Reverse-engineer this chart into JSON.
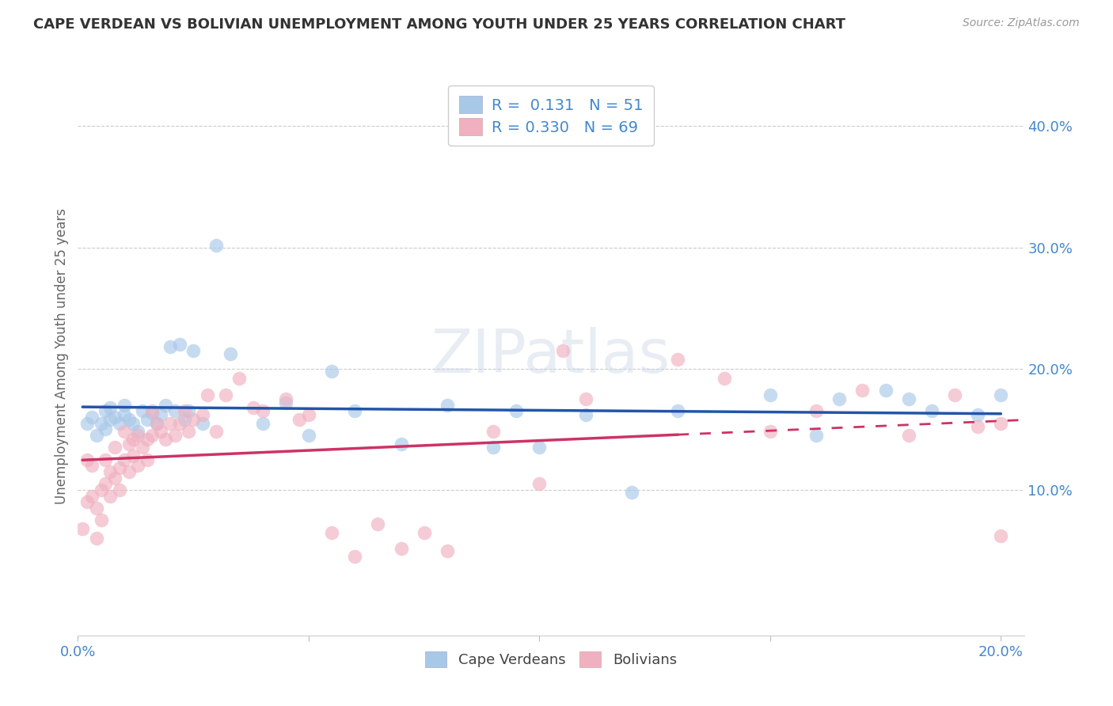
{
  "title": "CAPE VERDEAN VS BOLIVIAN UNEMPLOYMENT AMONG YOUTH UNDER 25 YEARS CORRELATION CHART",
  "source": "Source: ZipAtlas.com",
  "ylabel": "Unemployment Among Youth under 25 years",
  "xlim": [
    0.0,
    0.205
  ],
  "ylim": [
    -0.02,
    0.44
  ],
  "xtick_pos": [
    0.0,
    0.05,
    0.1,
    0.15,
    0.2
  ],
  "xtick_labels": [
    "0.0%",
    "",
    "",
    "",
    "20.0%"
  ],
  "ytick_vals": [
    0.1,
    0.2,
    0.3,
    0.4
  ],
  "ytick_labels": [
    "10.0%",
    "20.0%",
    "30.0%",
    "40.0%"
  ],
  "legend_labels": [
    "Cape Verdeans",
    "Bolivians"
  ],
  "cape_verdean_color": "#a8c8e8",
  "bolivian_color": "#f0b0c0",
  "cape_verdean_line_color": "#2255aa",
  "bolivian_line_color": "#cc3366",
  "watermark": "ZIPatlas",
  "background_color": "#ffffff",
  "cv_scatter_x": [
    0.002,
    0.003,
    0.004,
    0.005,
    0.006,
    0.006,
    0.007,
    0.007,
    0.008,
    0.009,
    0.01,
    0.01,
    0.011,
    0.012,
    0.013,
    0.014,
    0.015,
    0.016,
    0.017,
    0.018,
    0.019,
    0.02,
    0.021,
    0.022,
    0.023,
    0.024,
    0.025,
    0.027,
    0.03,
    0.033,
    0.04,
    0.045,
    0.05,
    0.055,
    0.06,
    0.07,
    0.08,
    0.09,
    0.095,
    0.1,
    0.11,
    0.12,
    0.13,
    0.15,
    0.16,
    0.165,
    0.175,
    0.18,
    0.185,
    0.195,
    0.2
  ],
  "cv_scatter_y": [
    0.155,
    0.16,
    0.145,
    0.155,
    0.15,
    0.165,
    0.158,
    0.168,
    0.16,
    0.155,
    0.162,
    0.17,
    0.158,
    0.155,
    0.148,
    0.165,
    0.158,
    0.163,
    0.155,
    0.162,
    0.17,
    0.218,
    0.165,
    0.22,
    0.158,
    0.165,
    0.215,
    0.155,
    0.302,
    0.212,
    0.155,
    0.172,
    0.145,
    0.198,
    0.165,
    0.138,
    0.17,
    0.135,
    0.165,
    0.135,
    0.162,
    0.098,
    0.165,
    0.178,
    0.145,
    0.175,
    0.182,
    0.175,
    0.165,
    0.162,
    0.178
  ],
  "bo_scatter_x": [
    0.001,
    0.002,
    0.002,
    0.003,
    0.003,
    0.004,
    0.004,
    0.005,
    0.005,
    0.006,
    0.006,
    0.007,
    0.007,
    0.008,
    0.008,
    0.009,
    0.009,
    0.01,
    0.01,
    0.011,
    0.011,
    0.012,
    0.012,
    0.013,
    0.013,
    0.014,
    0.015,
    0.015,
    0.016,
    0.016,
    0.017,
    0.018,
    0.019,
    0.02,
    0.021,
    0.022,
    0.023,
    0.024,
    0.025,
    0.027,
    0.028,
    0.03,
    0.032,
    0.035,
    0.038,
    0.04,
    0.045,
    0.048,
    0.05,
    0.055,
    0.06,
    0.065,
    0.07,
    0.075,
    0.08,
    0.09,
    0.1,
    0.105,
    0.11,
    0.13,
    0.14,
    0.15,
    0.16,
    0.17,
    0.18,
    0.19,
    0.195,
    0.2,
    0.2
  ],
  "bo_scatter_y": [
    0.068,
    0.09,
    0.125,
    0.095,
    0.12,
    0.06,
    0.085,
    0.075,
    0.1,
    0.105,
    0.125,
    0.095,
    0.115,
    0.11,
    0.135,
    0.1,
    0.118,
    0.125,
    0.148,
    0.115,
    0.138,
    0.128,
    0.142,
    0.12,
    0.145,
    0.135,
    0.125,
    0.142,
    0.145,
    0.165,
    0.155,
    0.148,
    0.142,
    0.155,
    0.145,
    0.155,
    0.165,
    0.148,
    0.158,
    0.162,
    0.178,
    0.148,
    0.178,
    0.192,
    0.168,
    0.165,
    0.175,
    0.158,
    0.162,
    0.065,
    0.045,
    0.072,
    0.052,
    0.065,
    0.05,
    0.148,
    0.105,
    0.215,
    0.175,
    0.208,
    0.192,
    0.148,
    0.165,
    0.182,
    0.145,
    0.178,
    0.152,
    0.062,
    0.155
  ]
}
